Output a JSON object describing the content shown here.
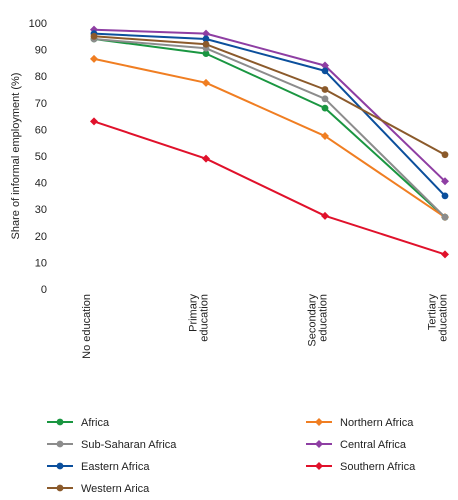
{
  "chart_data": {
    "type": "line",
    "title": "",
    "xlabel": "",
    "ylabel": "Share of informal employment (%)",
    "ylim": [
      0,
      100
    ],
    "yticks": [
      0,
      10,
      20,
      30,
      40,
      50,
      60,
      70,
      80,
      90,
      100
    ],
    "grid": false,
    "legend_position": "bottom",
    "categories": [
      [
        "No education"
      ],
      [
        "Primary",
        "education"
      ],
      [
        "Secondary",
        "education"
      ],
      [
        "Tertiary",
        "education"
      ]
    ],
    "series": [
      {
        "name": "Africa",
        "color": "#1a9641",
        "marker": "circle",
        "values": [
          94,
          88.5,
          68,
          27
        ]
      },
      {
        "name": "Northern Africa",
        "color": "#f07e22",
        "marker": "diamond",
        "values": [
          86.5,
          77.5,
          57.5,
          27
        ]
      },
      {
        "name": "Sub-Saharan Africa",
        "color": "#8c8c8c",
        "marker": "circle",
        "values": [
          94,
          90.5,
          71.5,
          27
        ]
      },
      {
        "name": "Central Africa",
        "color": "#8e3ea3",
        "marker": "diamond",
        "values": [
          97.5,
          96,
          84,
          40.5
        ]
      },
      {
        "name": "Eastern Africa",
        "color": "#0b4f9c",
        "marker": "circle",
        "values": [
          96,
          94,
          82,
          35
        ]
      },
      {
        "name": "Southern Africa",
        "color": "#e0112b",
        "marker": "diamond",
        "values": [
          63,
          49,
          27.5,
          13
        ]
      },
      {
        "name": "Western Arica",
        "color": "#8b5a2b",
        "marker": "circle",
        "values": [
          95,
          92,
          75,
          50.5
        ]
      }
    ]
  }
}
